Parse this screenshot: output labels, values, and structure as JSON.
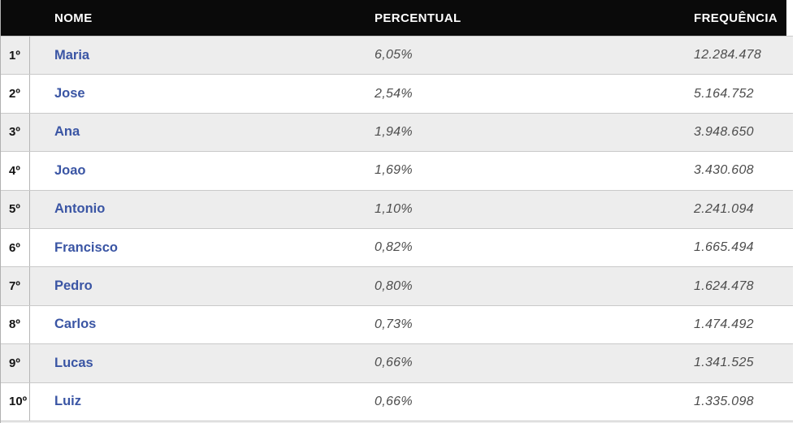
{
  "table": {
    "columns": [
      {
        "key": "rank",
        "label": ""
      },
      {
        "key": "name",
        "label": "NOME"
      },
      {
        "key": "percent",
        "label": "PERCENTUAL"
      },
      {
        "key": "frequency",
        "label": "FREQUÊNCIA"
      }
    ],
    "rows": [
      {
        "rank": "1º",
        "name": "Maria",
        "percent": "6,05%",
        "frequency": "12.284.478"
      },
      {
        "rank": "2º",
        "name": "Jose",
        "percent": "2,54%",
        "frequency": "5.164.752"
      },
      {
        "rank": "3º",
        "name": "Ana",
        "percent": "1,94%",
        "frequency": "3.948.650"
      },
      {
        "rank": "4º",
        "name": "Joao",
        "percent": "1,69%",
        "frequency": "3.430.608"
      },
      {
        "rank": "5º",
        "name": "Antonio",
        "percent": "1,10%",
        "frequency": "2.241.094"
      },
      {
        "rank": "6º",
        "name": "Francisco",
        "percent": "0,82%",
        "frequency": "1.665.494"
      },
      {
        "rank": "7º",
        "name": "Pedro",
        "percent": "0,80%",
        "frequency": "1.624.478"
      },
      {
        "rank": "8º",
        "name": "Carlos",
        "percent": "0,73%",
        "frequency": "1.474.492"
      },
      {
        "rank": "9º",
        "name": "Lucas",
        "percent": "0,66%",
        "frequency": "1.341.525"
      },
      {
        "rank": "10º",
        "name": "Luiz",
        "percent": "0,66%",
        "frequency": "1.335.098"
      }
    ]
  },
  "colors": {
    "header_bg": "#0a0a0a",
    "header_text": "#ffffff",
    "name_link": "#3a55a4",
    "value_text": "#4d4d4d",
    "row_bg": "#ffffff",
    "row_alt_bg": "#ededed",
    "row_border": "#c9c9c9",
    "rank_divider": "#b5b5b5"
  }
}
